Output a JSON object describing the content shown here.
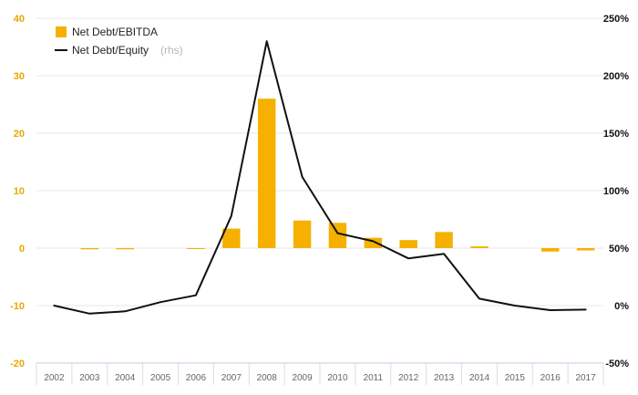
{
  "chart_data": {
    "type": "bar",
    "categories": [
      "2002",
      "2003",
      "2004",
      "2005",
      "2006",
      "2007",
      "2008",
      "2009",
      "2010",
      "2011",
      "2012",
      "2013",
      "2014",
      "2015",
      "2016",
      "2017"
    ],
    "series": [
      {
        "name": "Net Debt/EBITDA",
        "type": "bar",
        "axis": "left",
        "values": [
          0,
          -0.2,
          -0.2,
          0,
          -0.1,
          3.4,
          26,
          4.8,
          4.4,
          1.8,
          1.4,
          2.8,
          0.3,
          0,
          -0.6,
          -0.4
        ]
      },
      {
        "name": "Net Debt/Equity",
        "type": "line",
        "axis": "right",
        "values": [
          0,
          -7,
          -5,
          3,
          9,
          78,
          230,
          112,
          63,
          56,
          41,
          45,
          6,
          0,
          -4,
          -3.5
        ]
      }
    ],
    "legend": {
      "placement": "top-left",
      "items": [
        {
          "label": "Net Debt/EBITDA",
          "suffix": ""
        },
        {
          "label": "Net Debt/Equity",
          "suffix": "(rhs)"
        }
      ]
    },
    "left_axis": {
      "ylim": [
        -20,
        40
      ],
      "ticks": [
        "-20",
        "-10",
        "0",
        "10",
        "20",
        "30",
        "40"
      ]
    },
    "right_axis": {
      "ylim": [
        -50,
        250
      ],
      "ticks": [
        "-50%",
        "0%",
        "50%",
        "100%",
        "150%",
        "200%",
        "250%"
      ]
    },
    "grid": true,
    "colors": {
      "bar": "#f5b000",
      "line": "#111111",
      "grid": "#e7e7e7",
      "axis": "#d8deea",
      "left_tick": "#e6a800",
      "right_tick": "#111111",
      "x_tick": "#666666"
    }
  }
}
